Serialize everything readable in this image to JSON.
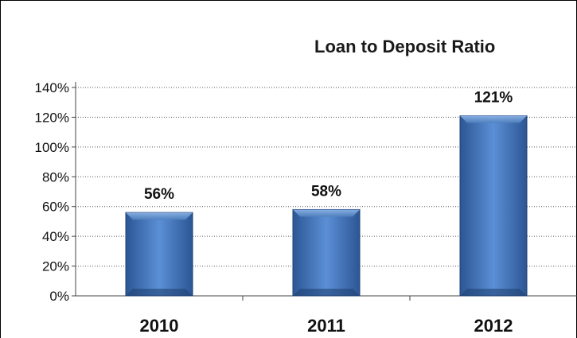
{
  "chart_data": {
    "type": "bar",
    "title": "Loan to Deposit Ratio",
    "xlabel": "",
    "ylabel": "",
    "categories": [
      "2010",
      "2011",
      "2012"
    ],
    "values": [
      56,
      58,
      121
    ],
    "data_labels": [
      "56%",
      "58%",
      "121%"
    ],
    "yticks": [
      "0%",
      "20%",
      "40%",
      "60%",
      "80%",
      "100%",
      "120%",
      "140%"
    ],
    "ylim": [
      0,
      140
    ],
    "grid": "horizontal dotted",
    "legend": "none",
    "bar_color": "#4f81bd"
  }
}
